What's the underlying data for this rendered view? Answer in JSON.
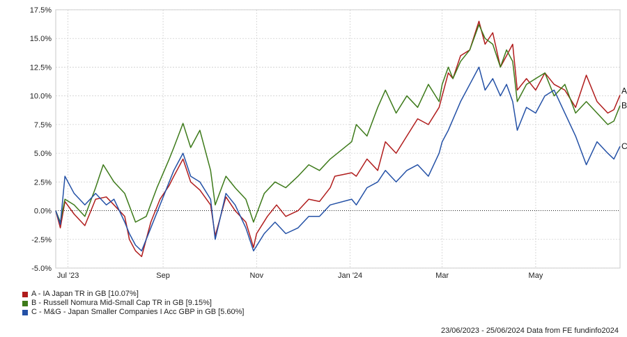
{
  "footer": {
    "text": "23/06/2023 - 25/06/2024 Data from FE fundinfo2024"
  },
  "legend": [
    {
      "label": "A - IA Japan TR in GB [10.07%]",
      "color": "#b01c1c"
    },
    {
      "label": "B - Russell Nomura Mid-Small Cap TR in GB [9.15%]",
      "color": "#3d7a1a"
    },
    {
      "label": "C - M&G - Japan Smaller Companies I Acc GBP in GB [5.60%]",
      "color": "#2451a6"
    }
  ],
  "chart_data": {
    "type": "line",
    "x_range": [
      "2023-06-23",
      "2024-06-25"
    ],
    "ylim": [
      -5,
      17.5
    ],
    "yticks": [
      "17.5%",
      "15.0%",
      "12.5%",
      "10.0%",
      "7.5%",
      "5.0%",
      "2.5%",
      "0.0%",
      "-2.5%",
      "-5.0%"
    ],
    "xticks": [
      {
        "date": "2023-07-01",
        "label": "Jul '23"
      },
      {
        "date": "2023-09-01",
        "label": "Sep"
      },
      {
        "date": "2023-11-01",
        "label": "Nov"
      },
      {
        "date": "2024-01-01",
        "label": "Jan '24"
      },
      {
        "date": "2024-03-01",
        "label": "Mar"
      },
      {
        "date": "2024-05-01",
        "label": "May"
      }
    ],
    "zero_line": "dotted",
    "grid": true,
    "series": [
      {
        "key": "A",
        "name": "A - IA Japan TR in GB [10.07%]",
        "color": "#b01c1c",
        "end_label": "A",
        "points": [
          [
            "2023-06-23",
            0.0
          ],
          [
            "2023-06-26",
            -1.5
          ],
          [
            "2023-06-29",
            0.8
          ],
          [
            "2023-07-05",
            -0.3
          ],
          [
            "2023-07-12",
            -1.3
          ],
          [
            "2023-07-19",
            1.0
          ],
          [
            "2023-07-26",
            1.2
          ],
          [
            "2023-07-31",
            0.5
          ],
          [
            "2023-08-07",
            -0.5
          ],
          [
            "2023-08-10",
            -2.5
          ],
          [
            "2023-08-14",
            -3.5
          ],
          [
            "2023-08-18",
            -4.0
          ],
          [
            "2023-08-24",
            -1.0
          ],
          [
            "2023-08-30",
            1.0
          ],
          [
            "2023-09-05",
            2.2
          ],
          [
            "2023-09-08",
            3.0
          ],
          [
            "2023-09-14",
            4.5
          ],
          [
            "2023-09-19",
            2.5
          ],
          [
            "2023-09-25",
            1.8
          ],
          [
            "2023-10-02",
            0.5
          ],
          [
            "2023-10-05",
            -2.2
          ],
          [
            "2023-10-12",
            1.2
          ],
          [
            "2023-10-18",
            0.0
          ],
          [
            "2023-10-25",
            -1.0
          ],
          [
            "2023-10-30",
            -3.2
          ],
          [
            "2023-11-01",
            -2.0
          ],
          [
            "2023-11-08",
            -0.5
          ],
          [
            "2023-11-14",
            0.5
          ],
          [
            "2023-11-20",
            -0.5
          ],
          [
            "2023-11-28",
            0.0
          ],
          [
            "2023-12-05",
            1.0
          ],
          [
            "2023-12-12",
            0.8
          ],
          [
            "2023-12-19",
            2.0
          ],
          [
            "2023-12-22",
            3.0
          ],
          [
            "2024-01-02",
            3.3
          ],
          [
            "2024-01-05",
            3.0
          ],
          [
            "2024-01-12",
            4.5
          ],
          [
            "2024-01-19",
            3.5
          ],
          [
            "2024-01-24",
            6.0
          ],
          [
            "2024-01-31",
            5.0
          ],
          [
            "2024-02-07",
            6.5
          ],
          [
            "2024-02-14",
            8.0
          ],
          [
            "2024-02-21",
            7.5
          ],
          [
            "2024-02-28",
            9.0
          ],
          [
            "2024-03-01",
            10.0
          ],
          [
            "2024-03-05",
            12.0
          ],
          [
            "2024-03-08",
            11.5
          ],
          [
            "2024-03-13",
            13.5
          ],
          [
            "2024-03-19",
            14.0
          ],
          [
            "2024-03-25",
            16.5
          ],
          [
            "2024-03-29",
            14.5
          ],
          [
            "2024-04-03",
            15.5
          ],
          [
            "2024-04-08",
            12.5
          ],
          [
            "2024-04-12",
            13.5
          ],
          [
            "2024-04-16",
            14.5
          ],
          [
            "2024-04-19",
            10.5
          ],
          [
            "2024-04-25",
            11.5
          ],
          [
            "2024-05-01",
            10.5
          ],
          [
            "2024-05-07",
            12.0
          ],
          [
            "2024-05-13",
            11.0
          ],
          [
            "2024-05-20",
            10.5
          ],
          [
            "2024-05-27",
            9.0
          ],
          [
            "2024-06-03",
            11.8
          ],
          [
            "2024-06-10",
            9.5
          ],
          [
            "2024-06-17",
            8.5
          ],
          [
            "2024-06-21",
            8.8
          ],
          [
            "2024-06-25",
            10.07
          ]
        ]
      },
      {
        "key": "B",
        "name": "B - Russell Nomura Mid-Small Cap TR in GB [9.15%]",
        "color": "#3d7a1a",
        "end_label": "B",
        "points": [
          [
            "2023-06-23",
            0.0
          ],
          [
            "2023-06-26",
            -1.0
          ],
          [
            "2023-06-29",
            1.0
          ],
          [
            "2023-07-05",
            0.5
          ],
          [
            "2023-07-12",
            -0.5
          ],
          [
            "2023-07-19",
            2.0
          ],
          [
            "2023-07-24",
            4.0
          ],
          [
            "2023-07-31",
            2.5
          ],
          [
            "2023-08-07",
            1.5
          ],
          [
            "2023-08-14",
            -1.0
          ],
          [
            "2023-08-21",
            -0.5
          ],
          [
            "2023-08-28",
            2.0
          ],
          [
            "2023-09-05",
            4.5
          ],
          [
            "2023-09-08",
            5.5
          ],
          [
            "2023-09-14",
            7.6
          ],
          [
            "2023-09-19",
            5.5
          ],
          [
            "2023-09-25",
            7.0
          ],
          [
            "2023-10-02",
            3.5
          ],
          [
            "2023-10-05",
            0.5
          ],
          [
            "2023-10-12",
            3.0
          ],
          [
            "2023-10-18",
            2.0
          ],
          [
            "2023-10-25",
            1.0
          ],
          [
            "2023-10-30",
            -1.0
          ],
          [
            "2023-11-06",
            1.5
          ],
          [
            "2023-11-13",
            2.5
          ],
          [
            "2023-11-20",
            2.0
          ],
          [
            "2023-11-28",
            3.0
          ],
          [
            "2023-12-05",
            4.0
          ],
          [
            "2023-12-12",
            3.5
          ],
          [
            "2023-12-19",
            4.5
          ],
          [
            "2024-01-02",
            6.0
          ],
          [
            "2024-01-05",
            7.5
          ],
          [
            "2024-01-12",
            6.5
          ],
          [
            "2024-01-19",
            9.0
          ],
          [
            "2024-01-24",
            10.5
          ],
          [
            "2024-01-31",
            8.5
          ],
          [
            "2024-02-07",
            10.0
          ],
          [
            "2024-02-14",
            9.0
          ],
          [
            "2024-02-21",
            11.0
          ],
          [
            "2024-02-28",
            9.5
          ],
          [
            "2024-03-01",
            11.0
          ],
          [
            "2024-03-05",
            12.5
          ],
          [
            "2024-03-08",
            11.5
          ],
          [
            "2024-03-13",
            13.0
          ],
          [
            "2024-03-19",
            14.0
          ],
          [
            "2024-03-25",
            16.2
          ],
          [
            "2024-03-29",
            15.0
          ],
          [
            "2024-04-03",
            14.5
          ],
          [
            "2024-04-08",
            12.5
          ],
          [
            "2024-04-12",
            14.0
          ],
          [
            "2024-04-16",
            13.0
          ],
          [
            "2024-04-19",
            9.5
          ],
          [
            "2024-04-25",
            11.0
          ],
          [
            "2024-05-01",
            11.5
          ],
          [
            "2024-05-07",
            12.0
          ],
          [
            "2024-05-13",
            10.0
          ],
          [
            "2024-05-20",
            11.0
          ],
          [
            "2024-05-27",
            8.5
          ],
          [
            "2024-06-03",
            9.5
          ],
          [
            "2024-06-10",
            8.5
          ],
          [
            "2024-06-17",
            7.5
          ],
          [
            "2024-06-21",
            7.8
          ],
          [
            "2024-06-25",
            9.15
          ]
        ]
      },
      {
        "key": "C",
        "name": "C - M&G - Japan Smaller Companies I Acc GBP in GB [5.60%]",
        "color": "#2451a6",
        "end_label": "C",
        "points": [
          [
            "2023-06-23",
            0.0
          ],
          [
            "2023-06-26",
            -1.2
          ],
          [
            "2023-06-29",
            3.0
          ],
          [
            "2023-07-05",
            1.5
          ],
          [
            "2023-07-12",
            0.5
          ],
          [
            "2023-07-19",
            1.5
          ],
          [
            "2023-07-26",
            0.5
          ],
          [
            "2023-07-31",
            1.0
          ],
          [
            "2023-08-07",
            -1.0
          ],
          [
            "2023-08-10",
            -2.0
          ],
          [
            "2023-08-14",
            -3.0
          ],
          [
            "2023-08-18",
            -3.5
          ],
          [
            "2023-08-24",
            -1.5
          ],
          [
            "2023-08-30",
            0.5
          ],
          [
            "2023-09-05",
            2.5
          ],
          [
            "2023-09-08",
            3.5
          ],
          [
            "2023-09-14",
            5.0
          ],
          [
            "2023-09-19",
            3.0
          ],
          [
            "2023-09-25",
            2.5
          ],
          [
            "2023-10-02",
            1.0
          ],
          [
            "2023-10-05",
            -2.5
          ],
          [
            "2023-10-12",
            1.5
          ],
          [
            "2023-10-18",
            0.5
          ],
          [
            "2023-10-25",
            -1.5
          ],
          [
            "2023-10-30",
            -3.5
          ],
          [
            "2023-11-06",
            -2.0
          ],
          [
            "2023-11-13",
            -1.0
          ],
          [
            "2023-11-20",
            -2.0
          ],
          [
            "2023-11-28",
            -1.5
          ],
          [
            "2023-12-05",
            -0.5
          ],
          [
            "2023-12-12",
            -0.5
          ],
          [
            "2023-12-19",
            0.5
          ],
          [
            "2024-01-02",
            1.0
          ],
          [
            "2024-01-05",
            0.5
          ],
          [
            "2024-01-12",
            2.0
          ],
          [
            "2024-01-19",
            2.5
          ],
          [
            "2024-01-24",
            3.5
          ],
          [
            "2024-01-31",
            2.5
          ],
          [
            "2024-02-07",
            3.5
          ],
          [
            "2024-02-14",
            4.0
          ],
          [
            "2024-02-21",
            3.0
          ],
          [
            "2024-02-28",
            5.0
          ],
          [
            "2024-03-01",
            6.0
          ],
          [
            "2024-03-05",
            7.0
          ],
          [
            "2024-03-13",
            9.5
          ],
          [
            "2024-03-19",
            11.0
          ],
          [
            "2024-03-25",
            12.5
          ],
          [
            "2024-03-29",
            10.5
          ],
          [
            "2024-04-03",
            11.5
          ],
          [
            "2024-04-08",
            10.0
          ],
          [
            "2024-04-12",
            11.0
          ],
          [
            "2024-04-16",
            9.5
          ],
          [
            "2024-04-19",
            7.0
          ],
          [
            "2024-04-25",
            9.0
          ],
          [
            "2024-05-01",
            8.5
          ],
          [
            "2024-05-07",
            10.0
          ],
          [
            "2024-05-13",
            10.5
          ],
          [
            "2024-05-20",
            8.5
          ],
          [
            "2024-05-27",
            6.5
          ],
          [
            "2024-06-03",
            4.0
          ],
          [
            "2024-06-10",
            6.0
          ],
          [
            "2024-06-17",
            5.0
          ],
          [
            "2024-06-21",
            4.5
          ],
          [
            "2024-06-25",
            5.6
          ]
        ]
      }
    ]
  }
}
